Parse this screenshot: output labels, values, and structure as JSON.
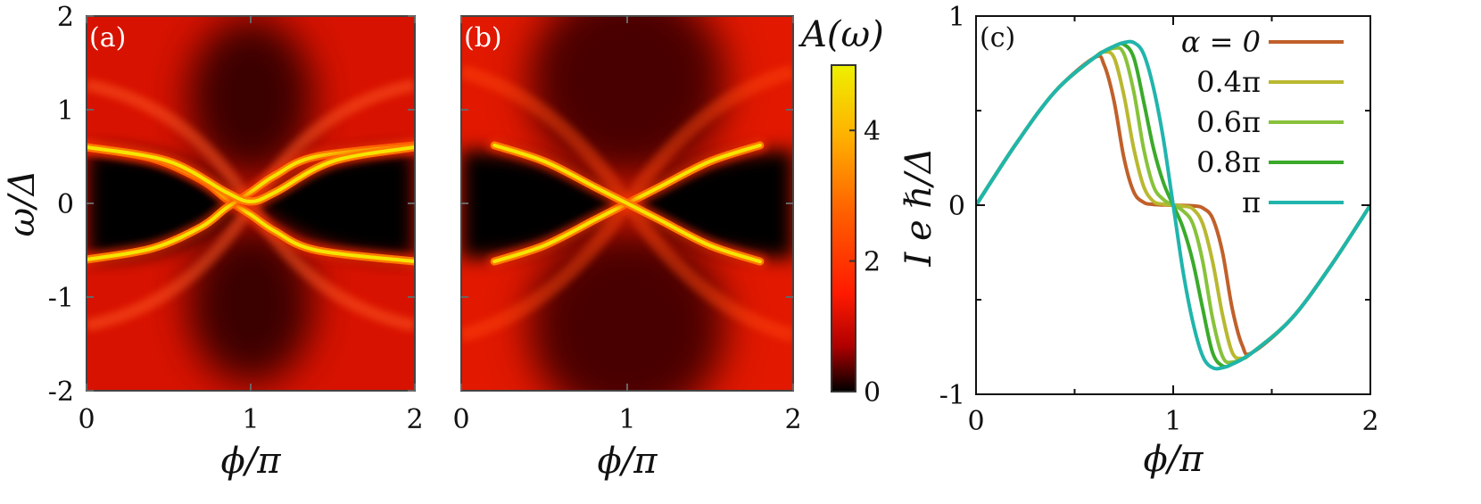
{
  "chart_data": [
    {
      "panel": "(a)",
      "type": "heatmap",
      "xlabel": "ϕ/π",
      "ylabel": "ω/Δ",
      "xlim": [
        0,
        2
      ],
      "ylim": [
        -2,
        2
      ],
      "xticks": [
        "0",
        "1",
        "2"
      ],
      "yticks": [
        "2",
        "1",
        "0",
        "-1",
        "-2"
      ],
      "bands": [
        {
          "description": "inner",
          "points": [
            [
              0.0,
              0.6
            ],
            [
              0.4,
              0.48
            ],
            [
              0.7,
              0.25
            ],
            [
              0.85,
              0.05
            ],
            [
              1.0,
              -0.12
            ],
            [
              1.15,
              -0.3
            ],
            [
              1.4,
              -0.5
            ],
            [
              2.0,
              -0.62
            ]
          ]
        },
        {
          "description": "inner-mirror",
          "points": [
            [
              0.0,
              -0.6
            ],
            [
              0.4,
              -0.48
            ],
            [
              0.7,
              -0.25
            ],
            [
              0.85,
              -0.05
            ],
            [
              1.0,
              0.12
            ],
            [
              1.15,
              0.3
            ],
            [
              1.4,
              0.5
            ],
            [
              2.0,
              0.62
            ]
          ]
        },
        {
          "description": "outer",
          "points": [
            [
              0.0,
              0.6
            ],
            [
              0.5,
              0.45
            ],
            [
              0.85,
              0.12
            ],
            [
              1.0,
              0.02
            ],
            [
              1.15,
              0.12
            ],
            [
              1.5,
              0.45
            ],
            [
              2.0,
              0.6
            ]
          ]
        }
      ]
    },
    {
      "panel": "(b)",
      "type": "heatmap",
      "xlabel": "ϕ/π",
      "xlim": [
        0,
        2
      ],
      "ylim": [
        -2,
        2
      ],
      "xticks": [
        "0",
        "1",
        "2"
      ],
      "bands": [
        {
          "description": "crossing-up",
          "points": [
            [
              0.2,
              -0.62
            ],
            [
              0.5,
              -0.45
            ],
            [
              0.8,
              -0.18
            ],
            [
              1.0,
              0.0
            ],
            [
              1.2,
              0.18
            ],
            [
              1.5,
              0.45
            ],
            [
              1.8,
              0.62
            ]
          ]
        },
        {
          "description": "crossing-down",
          "points": [
            [
              0.2,
              0.62
            ],
            [
              0.5,
              0.45
            ],
            [
              0.8,
              0.18
            ],
            [
              1.0,
              0.0
            ],
            [
              1.2,
              -0.18
            ],
            [
              1.5,
              -0.45
            ],
            [
              1.8,
              -0.62
            ]
          ]
        }
      ]
    },
    {
      "panel": "colorbar",
      "type": "heatmap",
      "title": "A(ω)",
      "zlim": [
        0,
        5
      ],
      "ticks": [
        "4",
        "2",
        "0"
      ],
      "tick_values": [
        4,
        2,
        0
      ],
      "colors": [
        "#000000",
        "#c00000",
        "#ff2000",
        "#ff6a00",
        "#ffb000",
        "#f0f000"
      ]
    },
    {
      "panel": "(c)",
      "type": "line",
      "xlabel": "ϕ/π",
      "ylabel": "I e ℏ/Δ",
      "xlim": [
        0,
        2
      ],
      "ylim": [
        -1,
        1
      ],
      "xticks": [
        "0",
        "1",
        "2"
      ],
      "yticks": [
        "1",
        "0",
        "-1"
      ],
      "legend_position": "top-right",
      "series": [
        {
          "name": "α = 0",
          "color": "#c0602a",
          "x": [
            0,
            0.2,
            0.4,
            0.6,
            0.65,
            0.7,
            0.75,
            0.8,
            0.85,
            0.9,
            1.0,
            1.1,
            1.15,
            1.2,
            1.25,
            1.3,
            1.35,
            1.4,
            1.6,
            1.8,
            2.0
          ],
          "y": [
            0,
            0.32,
            0.6,
            0.78,
            0.74,
            0.55,
            0.25,
            0.07,
            0.015,
            0.004,
            0,
            -0.004,
            -0.015,
            -0.07,
            -0.25,
            -0.55,
            -0.74,
            -0.78,
            -0.6,
            -0.32,
            0
          ]
        },
        {
          "name": "0.4π",
          "color": "#b9b830",
          "x": [
            0,
            0.2,
            0.4,
            0.6,
            0.65,
            0.7,
            0.75,
            0.8,
            0.85,
            0.9,
            0.95,
            1.0,
            1.05,
            1.1,
            1.15,
            1.2,
            1.25,
            1.3,
            1.35,
            1.4,
            1.6,
            1.8,
            2.0
          ],
          "y": [
            0,
            0.32,
            0.6,
            0.78,
            0.81,
            0.78,
            0.58,
            0.3,
            0.1,
            0.02,
            0.005,
            0,
            -0.005,
            -0.02,
            -0.1,
            -0.3,
            -0.58,
            -0.78,
            -0.81,
            -0.78,
            -0.6,
            -0.32,
            0
          ]
        },
        {
          "name": "0.6π",
          "color": "#88c23a",
          "x": [
            0,
            0.2,
            0.4,
            0.6,
            0.7,
            0.75,
            0.8,
            0.85,
            0.9,
            0.95,
            1.0,
            1.05,
            1.1,
            1.15,
            1.2,
            1.25,
            1.3,
            1.4,
            1.6,
            1.8,
            2.0
          ],
          "y": [
            0,
            0.32,
            0.6,
            0.78,
            0.83,
            0.8,
            0.6,
            0.3,
            0.1,
            0.03,
            0,
            -0.03,
            -0.1,
            -0.3,
            -0.6,
            -0.8,
            -0.83,
            -0.78,
            -0.6,
            -0.32,
            0
          ]
        },
        {
          "name": "0.8π",
          "color": "#3aaa2a",
          "x": [
            0,
            0.2,
            0.4,
            0.6,
            0.7,
            0.75,
            0.8,
            0.85,
            0.9,
            0.95,
            1.0,
            1.05,
            1.1,
            1.15,
            1.2,
            1.25,
            1.3,
            1.4,
            1.6,
            1.8,
            2.0
          ],
          "y": [
            0,
            0.32,
            0.6,
            0.78,
            0.84,
            0.85,
            0.78,
            0.55,
            0.3,
            0.12,
            0,
            -0.12,
            -0.3,
            -0.55,
            -0.78,
            -0.85,
            -0.84,
            -0.78,
            -0.6,
            -0.32,
            0
          ]
        },
        {
          "name": "π",
          "color": "#20b5ac",
          "x": [
            0,
            0.2,
            0.4,
            0.6,
            0.7,
            0.75,
            0.8,
            0.85,
            0.9,
            0.95,
            1.0,
            1.05,
            1.1,
            1.15,
            1.2,
            1.25,
            1.3,
            1.4,
            1.6,
            1.8,
            2.0
          ],
          "y": [
            0,
            0.32,
            0.6,
            0.78,
            0.84,
            0.86,
            0.86,
            0.8,
            0.62,
            0.35,
            0,
            -0.35,
            -0.62,
            -0.8,
            -0.86,
            -0.86,
            -0.84,
            -0.78,
            -0.6,
            -0.32,
            0
          ]
        }
      ]
    }
  ]
}
